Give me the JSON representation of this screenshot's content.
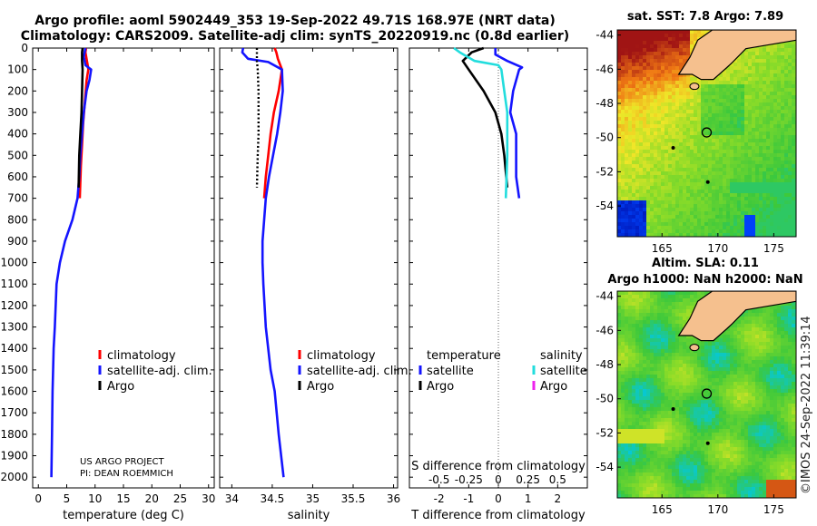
{
  "title": {
    "line1": "Argo profile: aoml 5902449_353 19-Sep-2022 49.71S 168.97E (NRT data)",
    "line2": "Climatology: CARS2009. Satellite-adj clim: synTS_20220919.nc (0.8d earlier)"
  },
  "colors": {
    "climatology": "#ff0000",
    "satellite": "#1414ff",
    "argo": "#000000",
    "sat_salinity": "#22dddd",
    "argo_salinity": "#ee22ee",
    "land": "#f5c08e"
  },
  "chart_data": [
    {
      "type": "line",
      "name": "temperature",
      "xlabel": "temperature (deg C)",
      "ylabel": "",
      "xlim": [
        -1,
        31
      ],
      "ylim": [
        2050,
        0
      ],
      "xticks": [
        "0",
        "5",
        "10",
        "15",
        "20",
        "25",
        "30"
      ],
      "xtick_values": [
        0,
        5,
        10,
        15,
        20,
        25,
        30
      ],
      "yticks": [
        "0",
        "100",
        "200",
        "300",
        "400",
        "500",
        "600",
        "700",
        "800",
        "900",
        "1000",
        "1100",
        "1200",
        "1300",
        "1400",
        "1500",
        "1600",
        "1700",
        "1800",
        "1900",
        "2000"
      ],
      "ytick_values": [
        0,
        100,
        200,
        300,
        400,
        500,
        600,
        700,
        800,
        900,
        1000,
        1100,
        1200,
        1300,
        1400,
        1500,
        1600,
        1700,
        1800,
        1900,
        2000
      ],
      "legend": [
        "climatology",
        "satellite-adj. clim.",
        "Argo"
      ],
      "legend_position": "bottom-right",
      "annotation": [
        "US ARGO PROJECT",
        "PI: DEAN ROEMMICH"
      ],
      "series": [
        {
          "name": "climatology",
          "color": "#ff0000",
          "x": [
            8.4,
            8.3,
            8.7,
            8.8,
            8.5,
            8.2,
            7.9,
            7.7,
            7.5,
            7.3
          ],
          "y": [
            0,
            20,
            80,
            100,
            150,
            250,
            350,
            450,
            550,
            700
          ]
        },
        {
          "name": "satellite-adj. clim.",
          "color": "#1414ff",
          "x": [
            8.3,
            8.0,
            8.3,
            9.3,
            9.0,
            8.5,
            8.0,
            7.7,
            7.4,
            7.2,
            6.9,
            6.0,
            4.7,
            3.8,
            3.2,
            2.9,
            2.7,
            2.6,
            2.5,
            2.4,
            2.3
          ],
          "y": [
            0,
            40,
            80,
            100,
            150,
            200,
            300,
            400,
            500,
            600,
            700,
            800,
            900,
            1000,
            1100,
            1300,
            1400,
            1500,
            1600,
            1800,
            2000
          ]
        },
        {
          "name": "Argo",
          "color": "#000000",
          "x": [
            7.8,
            7.7,
            7.7,
            7.8,
            7.7,
            7.6,
            7.4,
            7.2,
            7.1
          ],
          "y": [
            0,
            20,
            60,
            100,
            200,
            300,
            400,
            500,
            650
          ]
        }
      ]
    },
    {
      "type": "line",
      "name": "salinity",
      "xlabel": "salinity",
      "ylabel": "",
      "xlim": [
        33.85,
        36.05
      ],
      "ylim": [
        2050,
        0
      ],
      "xticks": [
        "34",
        "34.5",
        "35",
        "35.5",
        "36"
      ],
      "xtick_values": [
        34,
        34.5,
        35,
        35.5,
        36
      ],
      "legend": [
        "climatology",
        "satellite-adj. clim.",
        "Argo"
      ],
      "legend_position": "bottom-right",
      "series": [
        {
          "name": "climatology",
          "color": "#ff0000",
          "x": [
            34.53,
            34.55,
            34.57,
            34.6,
            34.62,
            34.58,
            34.52,
            34.48,
            34.45,
            34.42,
            34.4
          ],
          "y": [
            0,
            20,
            50,
            80,
            100,
            200,
            300,
            400,
            500,
            600,
            700
          ]
        },
        {
          "name": "satellite-adj. clim.",
          "color": "#1414ff",
          "x": [
            34.14,
            34.13,
            34.2,
            34.45,
            34.62,
            34.63,
            34.6,
            34.56,
            34.51,
            34.46,
            34.42,
            34.4,
            34.38,
            34.38,
            34.39,
            34.42,
            34.48,
            34.53,
            34.58,
            34.64
          ],
          "y": [
            0,
            20,
            50,
            65,
            100,
            200,
            300,
            400,
            500,
            600,
            700,
            800,
            900,
            1000,
            1100,
            1300,
            1500,
            1600,
            1800,
            2000
          ]
        },
        {
          "name": "Argo",
          "color": "#000000",
          "style": "dotted",
          "x": [
            34.31,
            34.31,
            34.31,
            34.32,
            34.33,
            34.33,
            34.33,
            34.32,
            34.31
          ],
          "y": [
            0,
            30,
            60,
            100,
            200,
            300,
            400,
            500,
            650
          ]
        }
      ]
    },
    {
      "type": "line",
      "name": "difference",
      "xlabel": "T difference from climatology",
      "xlabel_top": "S difference from climatology",
      "xlim": [
        -3,
        3
      ],
      "ylim": [
        2050,
        0
      ],
      "xticks": [
        "-2",
        "-1",
        "0",
        "1",
        "2"
      ],
      "xtick_values": [
        -2,
        -1,
        0,
        1,
        2
      ],
      "sticks": [
        "-0.5",
        "-0.25",
        "0",
        "0.25",
        "0.5"
      ],
      "stick_values": [
        -2,
        -1,
        0,
        1,
        2
      ],
      "legend_headers": [
        "temperature",
        "salinity"
      ],
      "legend_t": [
        "satellite",
        "Argo"
      ],
      "legend_s": [
        "satellite",
        "Argo"
      ],
      "series": [
        {
          "name": "temperature satellite",
          "color": "#1414ff",
          "x": [
            -0.1,
            -0.1,
            0.3,
            0.8,
            0.7,
            0.5,
            0.4,
            0.6,
            0.6,
            0.6,
            0.7
          ],
          "y": [
            0,
            30,
            60,
            90,
            100,
            200,
            300,
            400,
            500,
            600,
            700
          ]
        },
        {
          "name": "temperature Argo",
          "color": "#000000",
          "x": [
            -0.5,
            -0.9,
            -1.2,
            -1.0,
            -0.5,
            -0.1,
            0.1,
            0.2,
            0.3
          ],
          "y": [
            0,
            20,
            60,
            100,
            200,
            300,
            400,
            500,
            650
          ]
        },
        {
          "name": "salinity satellite",
          "color": "#22dddd",
          "x": [
            -1.5,
            -1.3,
            -0.8,
            0.0,
            0.1,
            0.2,
            0.3,
            0.3,
            0.3,
            0.25
          ],
          "y": [
            0,
            20,
            60,
            80,
            100,
            200,
            300,
            400,
            500,
            700
          ]
        }
      ]
    }
  ],
  "maps": [
    {
      "title": "sat. SST: 7.8 Argo: 7.89",
      "xticks": [
        "165",
        "170",
        "175"
      ],
      "xtick_values": [
        165,
        170,
        175
      ],
      "yticks": [
        "-44",
        "-46",
        "-48",
        "-50",
        "-52",
        "-54"
      ],
      "ytick_values": [
        -44,
        -46,
        -48,
        -50,
        -52,
        -54
      ],
      "lon_range": [
        161,
        177
      ],
      "lat_range": [
        -55.8,
        -43.7
      ],
      "marker": [
        169,
        -49.7
      ]
    },
    {
      "title_line1": "Altim. SLA: 0.11",
      "title_line2": "Argo h1000: NaN h2000: NaN",
      "xticks": [
        "165",
        "170",
        "175"
      ],
      "xtick_values": [
        165,
        170,
        175
      ],
      "yticks": [
        "-44",
        "-46",
        "-48",
        "-50",
        "-52",
        "-54"
      ],
      "ytick_values": [
        -44,
        -46,
        -48,
        -50,
        -52,
        -54
      ],
      "lon_range": [
        161,
        177
      ],
      "lat_range": [
        -55.8,
        -43.7
      ],
      "marker": [
        169,
        -49.7
      ]
    }
  ],
  "credit": "©IMOS 24-Sep-2022 11:39:14"
}
